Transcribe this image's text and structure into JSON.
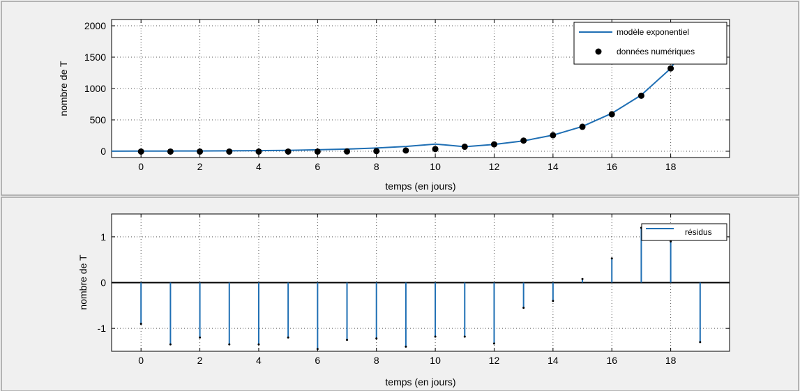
{
  "chart_data": [
    {
      "type": "line",
      "title": "",
      "xlabel": "temps (en jours)",
      "ylabel": "nombre de T",
      "xlim": [
        -1,
        20
      ],
      "ylim": [
        -100,
        2100
      ],
      "xticks": [
        0,
        2,
        4,
        6,
        8,
        10,
        12,
        14,
        16,
        18
      ],
      "yticks": [
        0,
        500,
        1000,
        1500,
        2000
      ],
      "grid": true,
      "legend_position": "top-right",
      "series": [
        {
          "name": "modèle exponentiel",
          "kind": "line",
          "color": "#1f6fb4",
          "x": [
            -1,
            0,
            1,
            2,
            3,
            4,
            5,
            6,
            7,
            8,
            9,
            10,
            11,
            12,
            13,
            14,
            15,
            16,
            17,
            18,
            19
          ],
          "values": [
            1.4,
            2,
            3,
            4.5,
            6.7,
            10,
            15,
            23,
            34,
            51,
            77,
            115,
            72,
            108,
            166,
            257,
            395,
            605,
            895,
            1320,
            2050
          ]
        },
        {
          "name": "données numériques",
          "kind": "scatter",
          "color": "#000000",
          "x": [
            0,
            1,
            2,
            3,
            4,
            5,
            6,
            7,
            8,
            9,
            10,
            11,
            12,
            13,
            14,
            15,
            16,
            17,
            18
          ],
          "values": [
            -5,
            -5,
            -5,
            -5,
            -5,
            -5,
            -5,
            -3,
            2,
            12,
            35,
            72,
            110,
            170,
            255,
            390,
            590,
            885,
            1320
          ]
        }
      ]
    },
    {
      "type": "bar",
      "title": "",
      "xlabel": "temps (en jours)",
      "ylabel": "nombre de T",
      "xlim": [
        -1,
        20
      ],
      "ylim": [
        -1.5,
        1.5
      ],
      "xticks": [
        0,
        2,
        4,
        6,
        8,
        10,
        12,
        14,
        16,
        18
      ],
      "yticks": [
        -1,
        0,
        1
      ],
      "grid": true,
      "legend_position": "top-right",
      "series": [
        {
          "name": "résidus",
          "kind": "stem",
          "color": "#1f6fb4",
          "x": [
            0,
            1,
            2,
            3,
            4,
            5,
            6,
            7,
            8,
            9,
            10,
            11,
            12,
            13,
            14,
            15,
            16,
            17,
            18,
            19
          ],
          "values": [
            -0.9,
            -1.35,
            -1.2,
            -1.35,
            -1.35,
            -1.2,
            -1.45,
            -1.25,
            -1.22,
            -1.4,
            -1.18,
            -1.18,
            -1.33,
            -0.55,
            -0.4,
            0.08,
            0.53,
            1.2,
            0.9,
            -1.3
          ]
        }
      ]
    }
  ]
}
